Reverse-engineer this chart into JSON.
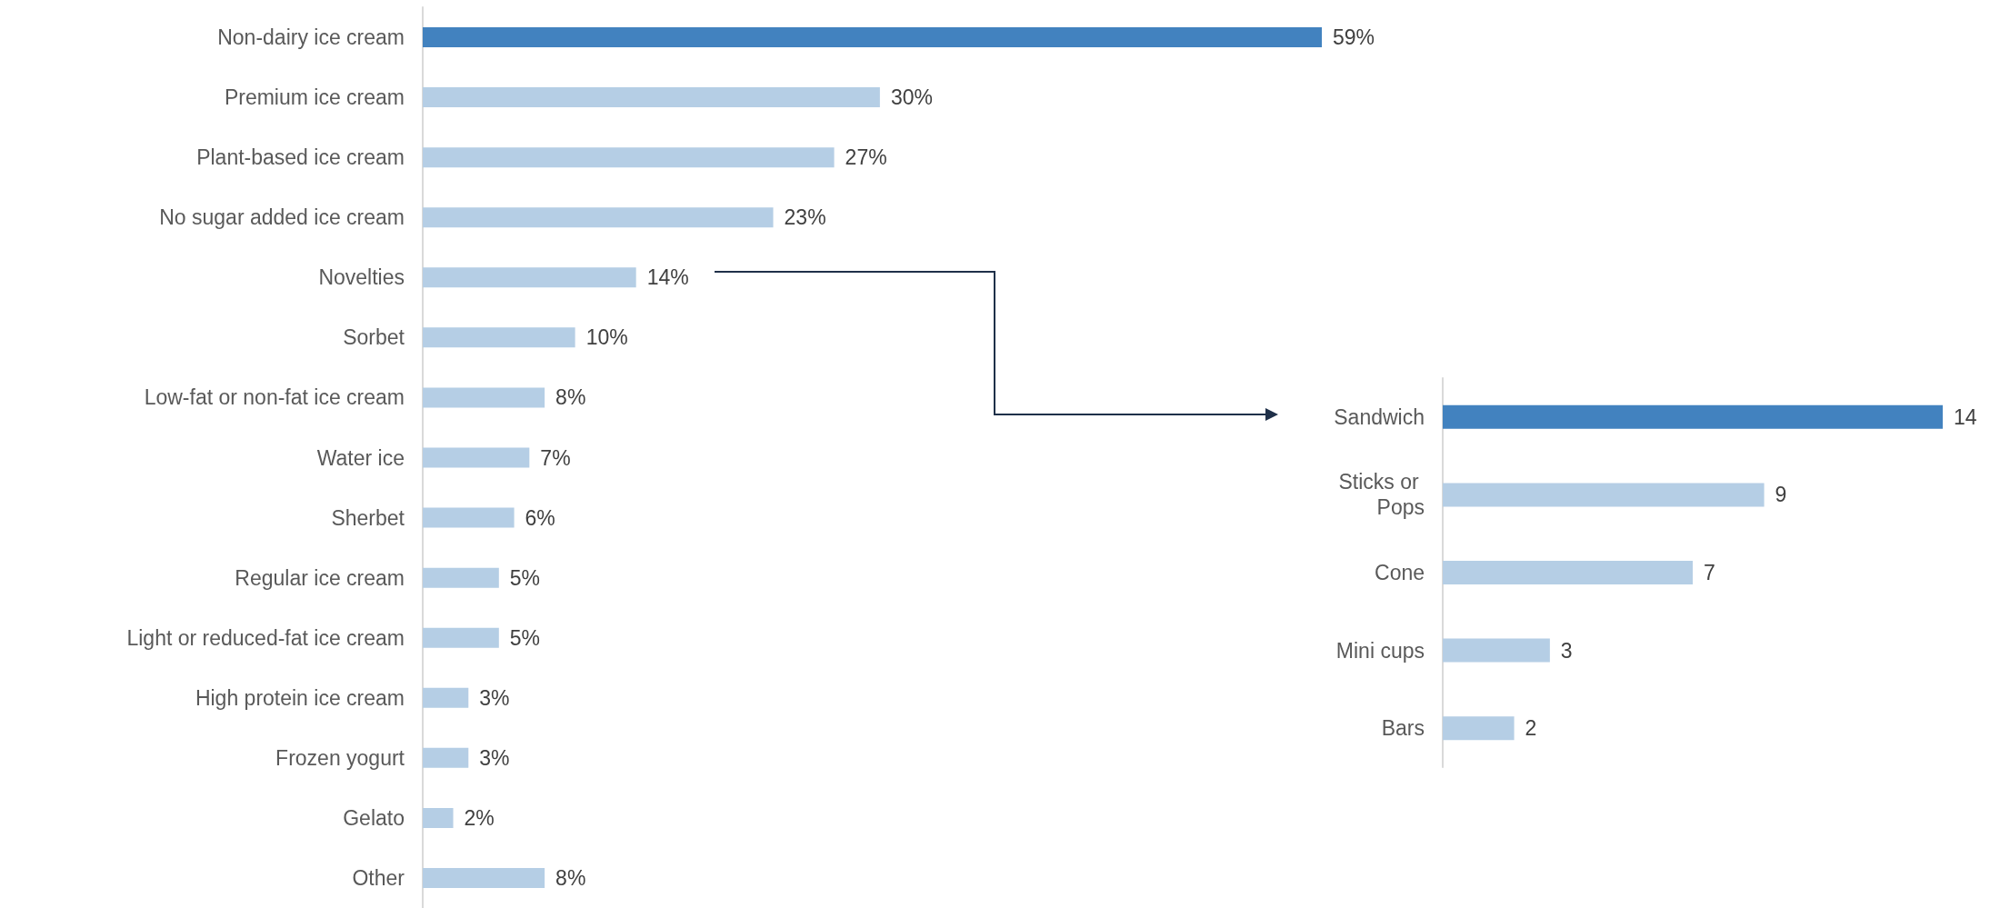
{
  "chart_data": [
    {
      "type": "bar",
      "orientation": "horizontal",
      "categories": [
        "Non-dairy ice cream",
        "Premium ice cream",
        "Plant-based ice cream",
        "No sugar added ice cream",
        "Novelties",
        "Sorbet",
        "Low-fat or non-fat ice cream",
        "Water ice",
        "Sherbet",
        "Regular ice cream",
        "Light or reduced-fat ice cream",
        "High protein ice cream",
        "Frozen yogurt",
        "Gelato",
        "Other"
      ],
      "values": [
        59,
        30,
        27,
        23,
        14,
        10,
        8,
        7,
        6,
        5,
        5,
        3,
        3,
        2,
        8
      ],
      "value_labels": [
        "59%",
        "30%",
        "27%",
        "23%",
        "14%",
        "10%",
        "8%",
        "7%",
        "6%",
        "5%",
        "5%",
        "3%",
        "3%",
        "2%",
        "8%"
      ],
      "colors": [
        "#4282bf",
        "#b5cee5",
        "#b5cee5",
        "#b5cee5",
        "#b5cee5",
        "#b5cee5",
        "#b5cee5",
        "#b5cee5",
        "#b5cee5",
        "#b5cee5",
        "#b5cee5",
        "#b5cee5",
        "#b5cee5",
        "#b5cee5",
        "#b5cee5"
      ]
    },
    {
      "type": "bar",
      "orientation": "horizontal",
      "categories": [
        "Sandwich",
        "Sticks or Pops",
        "Cone",
        "Mini cups",
        "Bars"
      ],
      "values": [
        14,
        9,
        7,
        3,
        2
      ],
      "data_labels": true,
      "colors": [
        "#4282bf",
        "#b5cee5",
        "#b5cee5",
        "#b5cee5",
        "#b5cee5"
      ]
    }
  ]
}
